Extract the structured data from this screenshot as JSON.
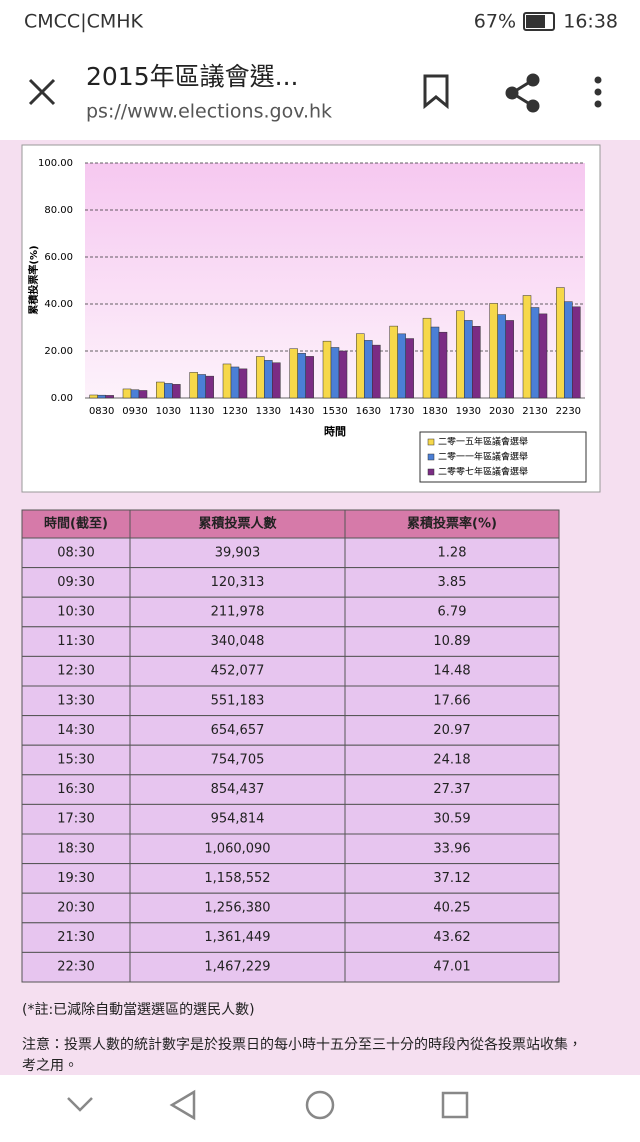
{
  "status_bar": {
    "carrier": "CMCC|CMHK",
    "battery": "67%",
    "time": "16:38"
  },
  "toolbar": {
    "title": "2015年區議會選...",
    "url": "ps://www.elections.gov.hk"
  },
  "chart_data": {
    "type": "bar",
    "y_label": "累積投票率(%)",
    "x_label": "時間",
    "categories": [
      "0830",
      "0930",
      "1030",
      "1130",
      "1230",
      "1330",
      "1430",
      "1530",
      "1630",
      "1730",
      "1830",
      "1930",
      "2030",
      "2130",
      "2230"
    ],
    "series": [
      {
        "name": "二零一五年區議會選舉",
        "color": "#f6d84a",
        "values": [
          1.28,
          3.85,
          6.79,
          10.89,
          14.48,
          17.66,
          20.97,
          24.18,
          27.37,
          30.59,
          33.96,
          37.12,
          40.25,
          43.62,
          47.01
        ]
      },
      {
        "name": "二零一一年區議會選舉",
        "color": "#4b7fd6",
        "values": [
          1.2,
          3.5,
          6.2,
          10.0,
          13.2,
          16.0,
          19.0,
          21.5,
          24.5,
          27.3,
          30.2,
          33.0,
          35.5,
          38.5,
          41.0
        ]
      },
      {
        "name": "二零零七年區議會選舉",
        "color": "#7b2c84",
        "values": [
          1.1,
          3.2,
          5.8,
          9.3,
          12.4,
          15.0,
          17.7,
          20.0,
          22.5,
          25.3,
          28.0,
          30.5,
          33.0,
          35.8,
          38.8
        ]
      }
    ],
    "ylim": [
      0,
      100
    ],
    "yticks": [
      {
        "value": 0,
        "label": "0.00"
      },
      {
        "value": 20,
        "label": "20.00"
      },
      {
        "value": 40,
        "label": "40.00"
      },
      {
        "value": 60,
        "label": "60.00"
      },
      {
        "value": 80,
        "label": "80.00"
      },
      {
        "value": 100,
        "label": "100.00"
      }
    ],
    "grid": true,
    "legend": "lower right"
  },
  "table": {
    "header": [
      "時間(截至)",
      "累積投票人數",
      "累積投票率(%)"
    ],
    "rows": [
      [
        "08:30",
        "39,903",
        "1.28"
      ],
      [
        "09:30",
        "120,313",
        "3.85"
      ],
      [
        "10:30",
        "211,978",
        "6.79"
      ],
      [
        "11:30",
        "340,048",
        "10.89"
      ],
      [
        "12:30",
        "452,077",
        "14.48"
      ],
      [
        "13:30",
        "551,183",
        "17.66"
      ],
      [
        "14:30",
        "654,657",
        "20.97"
      ],
      [
        "15:30",
        "754,705",
        "24.18"
      ],
      [
        "16:30",
        "854,437",
        "27.37"
      ],
      [
        "17:30",
        "954,814",
        "30.59"
      ],
      [
        "18:30",
        "1,060,090",
        "33.96"
      ],
      [
        "19:30",
        "1,158,552",
        "37.12"
      ],
      [
        "20:30",
        "1,256,380",
        "40.25"
      ],
      [
        "21:30",
        "1,361,449",
        "43.62"
      ],
      [
        "22:30",
        "1,467,229",
        "47.01"
      ]
    ]
  },
  "notes": [
    "(*註:已減除自動當選選區的選民人數)",
    "注意：投票人數的統計數字是於投票日的每小時十五分至三十分的時段內從各投票站收集，",
    "考之用。"
  ]
}
